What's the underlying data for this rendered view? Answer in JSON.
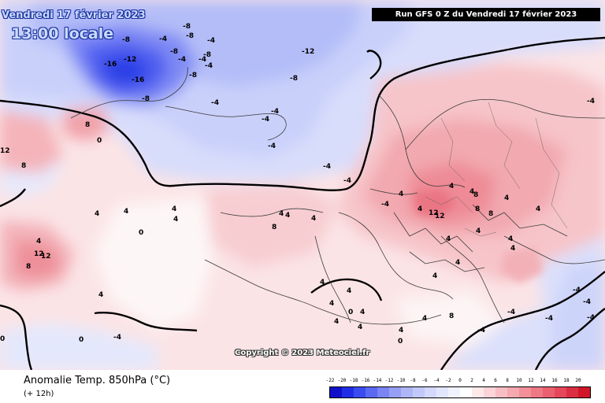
{
  "header": {
    "run_info": "Run GFS 0 Z du Vendredi 17 février 2023",
    "date": "Vendredi 17 février 2023",
    "local_time": "13:00 locale"
  },
  "copyright": "Copyright © 2023 Meteociel.fr",
  "footer": {
    "title": "Anomalie Temp. 850hPa (°C)",
    "lead": "(+ 12h)"
  },
  "scale": {
    "values": [
      "-22",
      "-20",
      "-18",
      "-16",
      "-14",
      "-12",
      "-10",
      "-8",
      "-6",
      "-4",
      "-2",
      "0",
      "2",
      "4",
      "6",
      "8",
      "10",
      "12",
      "14",
      "16",
      "18",
      "20"
    ],
    "colors": [
      "#1010c8",
      "#1f2ee6",
      "#3a4cf0",
      "#5a68f2",
      "#7a84f4",
      "#969ff6",
      "#aeb6f8",
      "#c2c9fa",
      "#d4d9fb",
      "#e2e6fc",
      "#f0f2fe",
      "#ffffff",
      "#fde8ea",
      "#fbd4d8",
      "#f8bec3",
      "#f5a8ae",
      "#f2909a",
      "#ee7884",
      "#ea6070",
      "#e4485a",
      "#dc2e42",
      "#d01628"
    ]
  },
  "map": {
    "contour_labels": [
      {
        "text": "-8"
      },
      {
        "text": "-8"
      },
      {
        "text": "-4"
      },
      {
        "text": "-8"
      },
      {
        "text": "-8"
      },
      {
        "text": "-4"
      },
      {
        "text": "-16"
      },
      {
        "text": "-12"
      },
      {
        "text": "-16"
      },
      {
        "text": "-8"
      },
      {
        "text": "-12"
      },
      {
        "text": "-8"
      },
      {
        "text": "-8"
      },
      {
        "text": "-4"
      },
      {
        "text": "-8"
      },
      {
        "text": "-4"
      },
      {
        "text": "-4"
      },
      {
        "text": "-4"
      },
      {
        "text": "-4"
      },
      {
        "text": "-4"
      },
      {
        "text": "-4"
      },
      {
        "text": "-4"
      },
      {
        "text": "-4"
      },
      {
        "text": "-4"
      },
      {
        "text": "8"
      },
      {
        "text": "12"
      },
      {
        "text": "8"
      },
      {
        "text": "4"
      },
      {
        "text": "4"
      },
      {
        "text": "4"
      },
      {
        "text": "0"
      },
      {
        "text": "0"
      },
      {
        "text": "4"
      },
      {
        "text": "4"
      },
      {
        "text": "4"
      },
      {
        "text": "4"
      },
      {
        "text": "8"
      },
      {
        "text": "4"
      },
      {
        "text": "4"
      },
      {
        "text": "4"
      },
      {
        "text": "4"
      },
      {
        "text": "8"
      },
      {
        "text": "12"
      },
      {
        "text": "12"
      },
      {
        "text": "8"
      },
      {
        "text": "8"
      },
      {
        "text": "4"
      },
      {
        "text": "4"
      },
      {
        "text": "4"
      },
      {
        "text": "4"
      },
      {
        "text": "4"
      },
      {
        "text": "4"
      },
      {
        "text": "4"
      },
      {
        "text": "12"
      },
      {
        "text": "12"
      },
      {
        "text": "8"
      },
      {
        "text": "4"
      },
      {
        "text": "0"
      },
      {
        "text": "0"
      },
      {
        "text": "-4"
      },
      {
        "text": "-4"
      },
      {
        "text": "-4"
      },
      {
        "text": "-4"
      },
      {
        "text": "4"
      },
      {
        "text": "4"
      },
      {
        "text": "4"
      },
      {
        "text": "4"
      },
      {
        "text": "0"
      },
      {
        "text": "4"
      },
      {
        "text": "4"
      },
      {
        "text": "-4"
      },
      {
        "text": "-4"
      },
      {
        "text": "-4"
      },
      {
        "text": "4"
      },
      {
        "text": "8"
      },
      {
        "text": "4"
      },
      {
        "text": "4"
      },
      {
        "text": "-4"
      },
      {
        "text": "4"
      },
      {
        "text": "0"
      }
    ]
  }
}
